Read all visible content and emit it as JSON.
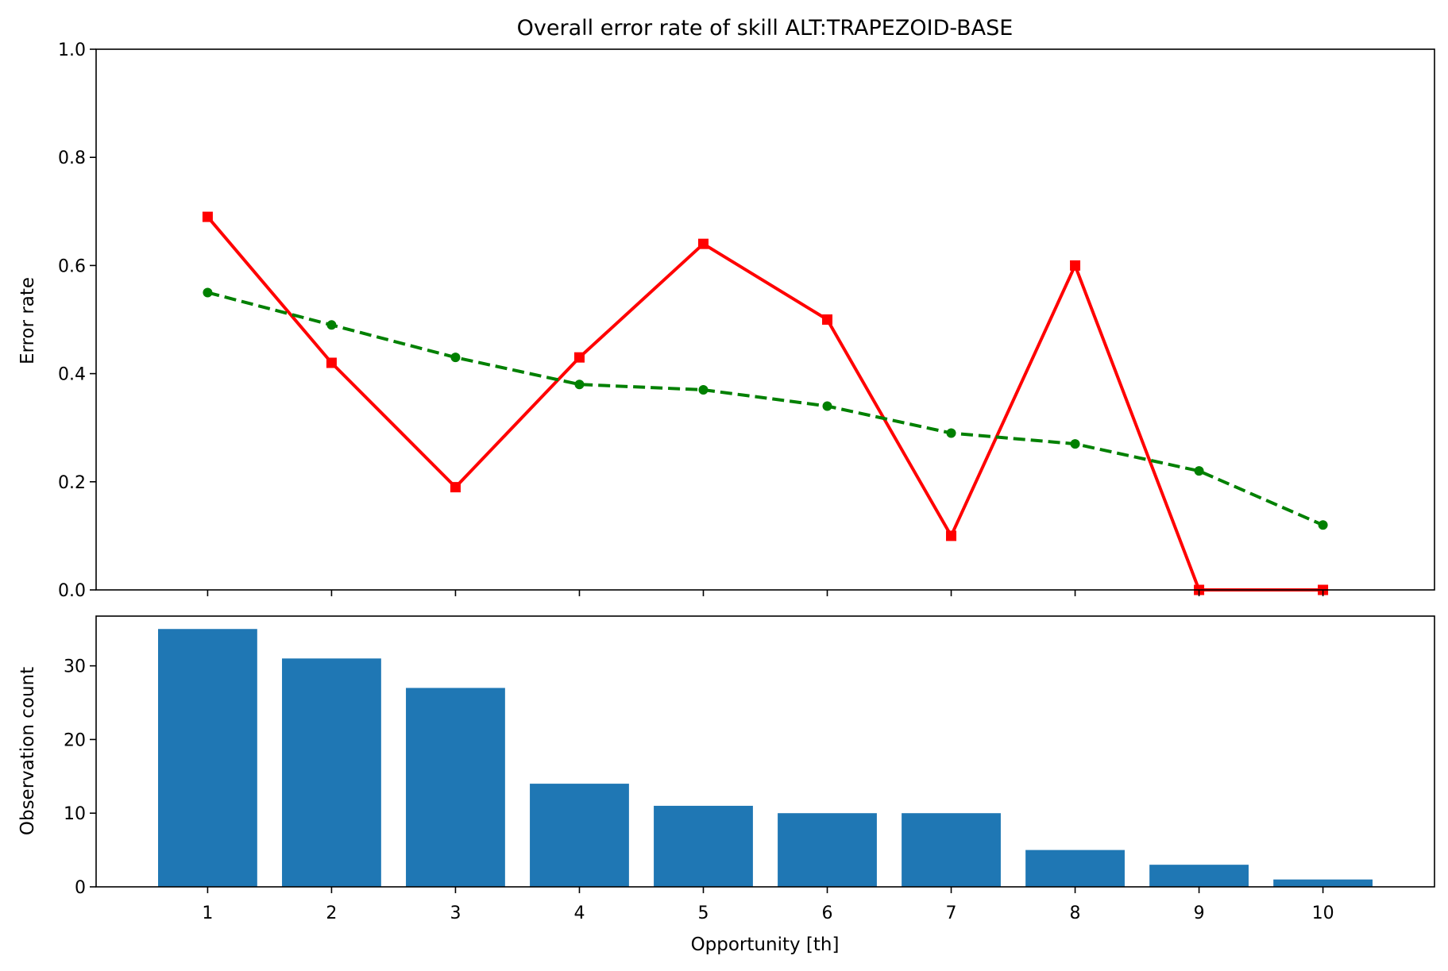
{
  "chart_data": [
    {
      "type": "line",
      "title": "Overall error rate of skill ALT:TRAPEZOID-BASE",
      "xlabel": "",
      "ylabel": "Error rate",
      "x": [
        1,
        2,
        3,
        4,
        5,
        6,
        7,
        8,
        9,
        10
      ],
      "xlim": [
        0.1,
        10.9
      ],
      "ylim": [
        0,
        1.0
      ],
      "yticks": [
        0.0,
        0.2,
        0.4,
        0.6,
        0.8,
        1.0
      ],
      "ytick_labels": [
        "0.0",
        "0.2",
        "0.4",
        "0.6",
        "0.8",
        "1.0"
      ],
      "grid": false,
      "series": [
        {
          "values": [
            0.69,
            0.42,
            0.19,
            0.43,
            0.64,
            0.5,
            0.1,
            0.6,
            0.0,
            0.0
          ],
          "color": "#ff0000",
          "line_style": "solid",
          "marker": "square"
        },
        {
          "values": [
            0.55,
            0.49,
            0.43,
            0.38,
            0.37,
            0.34,
            0.29,
            0.27,
            0.22,
            0.12
          ],
          "color": "#008000",
          "line_style": "dashed",
          "marker": "circle"
        }
      ]
    },
    {
      "type": "bar",
      "xlabel": "Opportunity [th]",
      "ylabel": "Observation count",
      "categories": [
        "1",
        "2",
        "3",
        "4",
        "5",
        "6",
        "7",
        "8",
        "9",
        "10"
      ],
      "values": [
        35,
        31,
        27,
        14,
        11,
        10,
        10,
        5,
        3,
        1
      ],
      "xlim": [
        0.1,
        10.9
      ],
      "ylim": [
        0,
        36.75
      ],
      "yticks": [
        0,
        10,
        20,
        30
      ],
      "ytick_labels": [
        "0",
        "10",
        "20",
        "30"
      ],
      "bar_color": "#1f77b4",
      "grid": false
    }
  ]
}
